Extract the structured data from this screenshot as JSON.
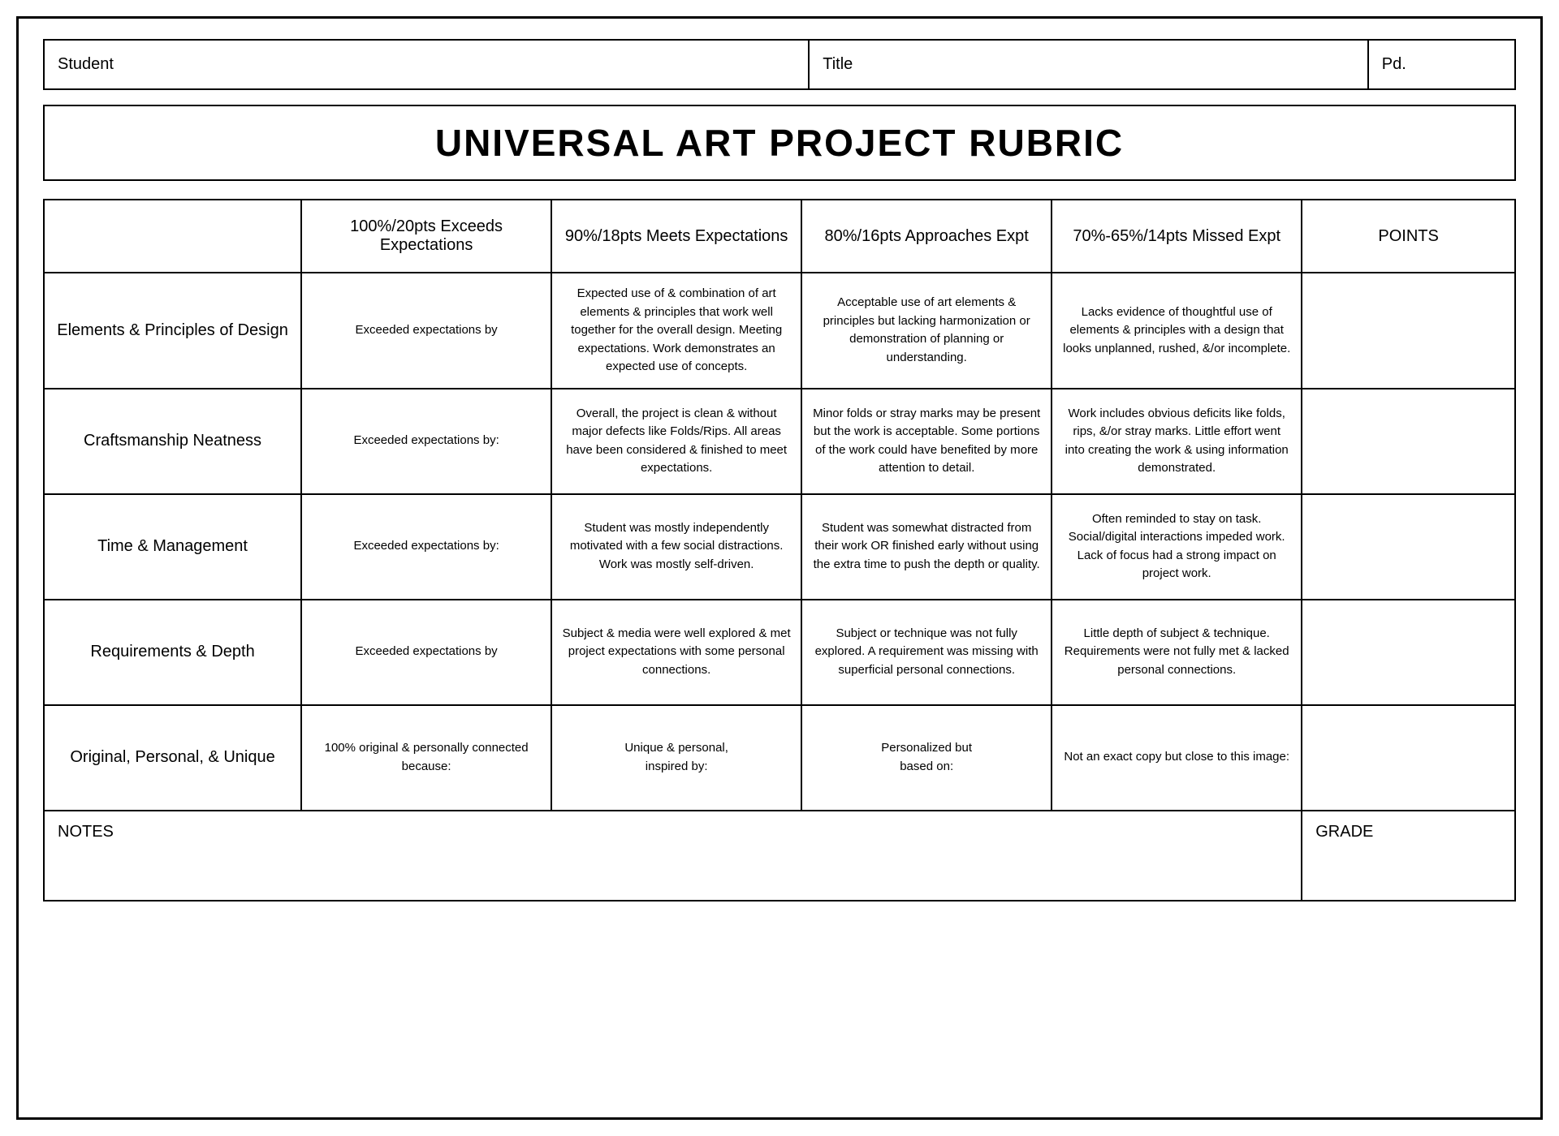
{
  "header": {
    "student_label": "Student",
    "title_label": "Title",
    "pd_label": "Pd."
  },
  "main_title": "UNIVERSAL ART PROJECT RUBRIC",
  "columns": {
    "criteria_header": "",
    "exceeds": "100%/20pts Exceeds Expectations",
    "meets": "90%/18pts Meets Expectations",
    "approaches": "80%/16pts Approaches Expt",
    "missed": "70%-65%/14pts Missed Expt",
    "points": "POINTS"
  },
  "rows": [
    {
      "criteria": "Elements & Principles of Design",
      "exceeds": "Exceeded expectations by",
      "meets": "Expected use of & combination of art elements & principles that work well together for the overall design. Meeting expectations. Work demonstrates an expected use of concepts.",
      "approaches": "Acceptable use of art elements & principles but lacking harmonization or demonstration of planning or understanding.",
      "missed": "Lacks evidence of thoughtful use of elements & principles with a design that looks unplanned, rushed, &/or incomplete."
    },
    {
      "criteria": "Craftsmanship Neatness",
      "exceeds": "Exceeded expectations by:",
      "meets": "Overall, the project is clean & without major defects like Folds/Rips. All areas have been considered & finished to meet expectations.",
      "approaches": "Minor folds or stray marks may be present but the work is acceptable. Some portions of the work could have benefited by more attention to detail.",
      "missed": "Work includes obvious deficits like folds, rips, &/or stray marks. Little effort went into creating the work & using information demonstrated."
    },
    {
      "criteria": "Time & Management",
      "exceeds": "Exceeded expectations by:",
      "meets": "Student was mostly independently motivated with a few social distractions. Work was mostly self-driven.",
      "approaches": "Student was somewhat distracted from their work OR finished early without using the extra time to push the depth or quality.",
      "missed": "Often reminded to stay on task. Social/digital interactions impeded work. Lack of focus had a strong impact on project work."
    },
    {
      "criteria": "Requirements & Depth",
      "exceeds": "Exceeded expectations by",
      "meets": "Subject & media were well explored & met project expectations with some personal connections.",
      "approaches": "Subject or technique was not fully explored. A requirement was missing with superficial personal connections.",
      "missed": "Little depth of subject & technique. Requirements were not fully met & lacked personal connections."
    },
    {
      "criteria": "Original, Personal, & Unique",
      "exceeds": "100% original & personally connected because:",
      "meets": "Unique & personal,\ninspired by:",
      "approaches": "Personalized but\nbased on:",
      "missed": "Not an exact copy but close to this image:"
    }
  ],
  "footer": {
    "notes_label": "NOTES",
    "grade_label": "GRADE"
  },
  "styling": {
    "border_color": "#000000",
    "background_color": "#ffffff",
    "text_color": "#000000",
    "title_fontsize": 46,
    "header_fontsize": 20,
    "cell_fontsize": 15,
    "label_fontsize": 20
  }
}
